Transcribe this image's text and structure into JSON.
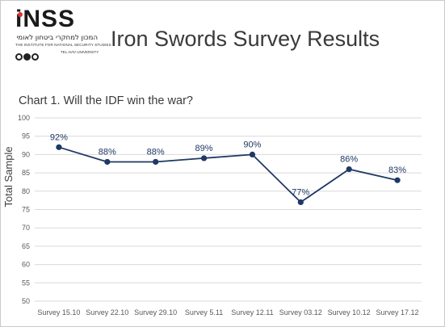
{
  "header": {
    "logo_word": "iNSS",
    "logo_hebrew": "המכון למחקרי ביטחון לאומי",
    "logo_english": "THE INSTITUTE FOR NATIONAL SECURITY STUDIES",
    "logo_university": "TEL AVIV UNIVERSITY",
    "page_title": "Iron Swords Survey Results"
  },
  "chart_data": {
    "type": "line",
    "title": "Chart 1. Will the IDF win the war?",
    "xlabel": "",
    "ylabel": "Total Sample",
    "categories": [
      "Survey 15.10",
      "Survey 22.10",
      "Survey 29.10",
      "Survey 5.11",
      "Survey 12.11",
      "Survey 03.12",
      "Survey 10.12",
      "Survey 17.12"
    ],
    "values": [
      92,
      88,
      88,
      89,
      90,
      77,
      86,
      83
    ],
    "data_labels": [
      "92%",
      "88%",
      "88%",
      "89%",
      "90%",
      "77%",
      "86%",
      "83%"
    ],
    "ylim": [
      50,
      100
    ],
    "yticks": [
      50,
      55,
      60,
      65,
      70,
      75,
      80,
      85,
      90,
      95,
      100
    ],
    "grid": true,
    "legend": "none",
    "colors": {
      "line": "#1f3864",
      "grid": "#d9d9d9"
    }
  }
}
